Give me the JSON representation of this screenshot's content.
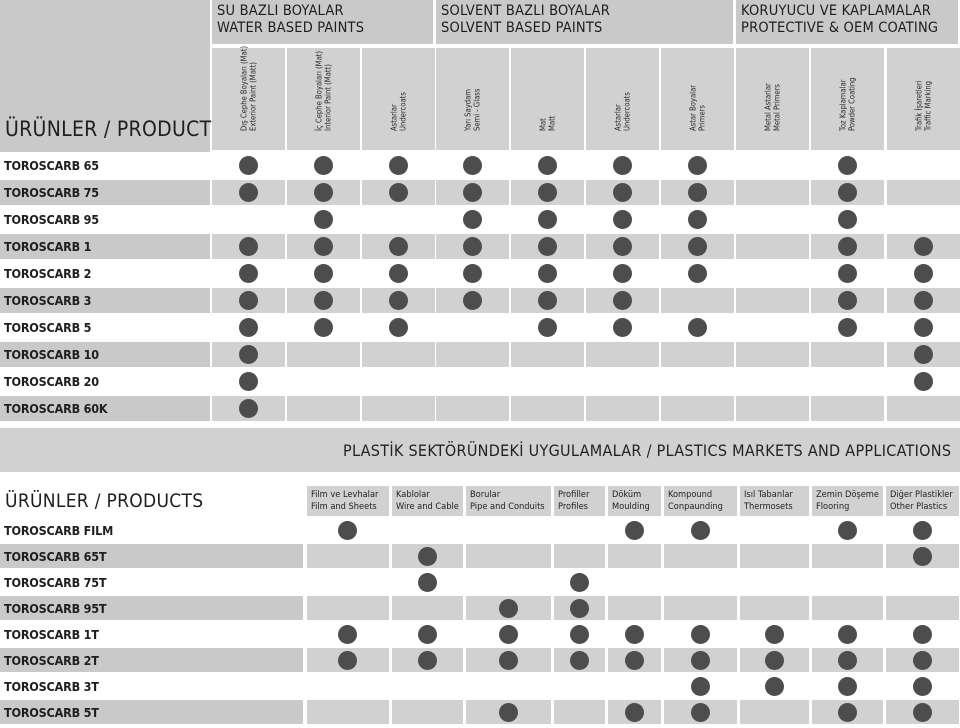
{
  "top": {
    "products_header": "ÜRÜNLER / PRODUCTS",
    "groups": [
      {
        "line1": "SU BAZLI BOYALAR",
        "line2": "WATER BASED PAINTS"
      },
      {
        "line1": "SOLVENT BAZLI BOYALAR",
        "line2": "SOLVENT BASED PAINTS"
      },
      {
        "line1": "KORUYUCU VE KAPLAMALAR",
        "line2": "PROTECTIVE & OEM COATING"
      }
    ],
    "columns": [
      {
        "tr": "Dış Cephe Boyaları (Mat)",
        "en": "Exterior Paint (Matt)"
      },
      {
        "tr": "İç Cephe Boyaları (Mat)",
        "en": "Interior Paint (Matt)"
      },
      {
        "tr": "Astarlar",
        "en": "Undercoats"
      },
      {
        "tr": "Yarı Saydam",
        "en": "Semi - Glass"
      },
      {
        "tr": "Mat",
        "en": "Matt"
      },
      {
        "tr": "Astarlar",
        "en": "Undercoats"
      },
      {
        "tr": "Astar Boyalar",
        "en": "Primers"
      },
      {
        "tr": "Metal Astarlar",
        "en": "Metal Primers"
      },
      {
        "tr": "Toz Kaplamalar",
        "en": "Powder Coating"
      },
      {
        "tr": "Trafik İşaretleri",
        "en": "Traffic Marking"
      }
    ],
    "rows": [
      {
        "name": "TOROSCARB 65",
        "marks": [
          1,
          1,
          1,
          1,
          1,
          1,
          1,
          0,
          1,
          0
        ]
      },
      {
        "name": "TOROSCARB 75",
        "marks": [
          1,
          1,
          1,
          1,
          1,
          1,
          1,
          0,
          1,
          0
        ]
      },
      {
        "name": "TOROSCARB 95",
        "marks": [
          0,
          1,
          0,
          1,
          1,
          1,
          1,
          0,
          1,
          0
        ]
      },
      {
        "name": "TOROSCARB 1",
        "marks": [
          1,
          1,
          1,
          1,
          1,
          1,
          1,
          0,
          1,
          1
        ]
      },
      {
        "name": "TOROSCARB 2",
        "marks": [
          1,
          1,
          1,
          1,
          1,
          1,
          1,
          0,
          1,
          1
        ]
      },
      {
        "name": "TOROSCARB 3",
        "marks": [
          1,
          1,
          1,
          1,
          1,
          1,
          0,
          0,
          1,
          1
        ]
      },
      {
        "name": "TOROSCARB 5",
        "marks": [
          1,
          1,
          1,
          0,
          1,
          1,
          1,
          0,
          1,
          1
        ]
      },
      {
        "name": "TOROSCARB 10",
        "marks": [
          1,
          0,
          0,
          0,
          0,
          0,
          0,
          0,
          0,
          1
        ]
      },
      {
        "name": "TOROSCARB 20",
        "marks": [
          1,
          0,
          0,
          0,
          0,
          0,
          0,
          0,
          0,
          1
        ]
      },
      {
        "name": "TOROSCARB 60K",
        "marks": [
          1,
          0,
          0,
          0,
          0,
          0,
          0,
          0,
          0,
          0
        ]
      }
    ]
  },
  "banner": "PLASTİK SEKTÖRÜNDEKİ UYGULAMALAR / PLASTICS MARKETS AND APPLICATIONS",
  "bottom": {
    "products_header": "ÜRÜNLER / PRODUCTS",
    "columns": [
      {
        "tr": "Film ve Levhalar",
        "en": "Film and Sheets"
      },
      {
        "tr": "Kablolar",
        "en": "Wire and Cable"
      },
      {
        "tr": "Borular",
        "en": "Pipe and Conduits"
      },
      {
        "tr": "Profiller",
        "en": "Profiles"
      },
      {
        "tr": "Döküm",
        "en": "Moulding"
      },
      {
        "tr": "Kompound",
        "en": "Conpaunding"
      },
      {
        "tr": "Isıl Tabanlar",
        "en": "Thermosets"
      },
      {
        "tr": "Zemin Döşeme",
        "en": "Flooring"
      },
      {
        "tr": "Diğer Plastikler",
        "en": "Other Plastics"
      }
    ],
    "rows": [
      {
        "name": "TOROSCARB FILM",
        "marks": [
          1,
          0,
          0,
          0,
          1,
          1,
          0,
          1,
          1
        ]
      },
      {
        "name": "TOROSCARB 65T",
        "marks": [
          0,
          1,
          0,
          0,
          0,
          0,
          0,
          0,
          1
        ]
      },
      {
        "name": "TOROSCARB 75T",
        "marks": [
          0,
          1,
          0,
          1,
          0,
          0,
          0,
          0,
          0
        ]
      },
      {
        "name": "TOROSCARB 95T",
        "marks": [
          0,
          0,
          1,
          1,
          0,
          0,
          0,
          0,
          0
        ]
      },
      {
        "name": "TOROSCARB 1T",
        "marks": [
          1,
          1,
          1,
          1,
          1,
          1,
          1,
          1,
          1
        ]
      },
      {
        "name": "TOROSCARB 2T",
        "marks": [
          1,
          1,
          1,
          1,
          1,
          1,
          1,
          1,
          1
        ]
      },
      {
        "name": "TOROSCARB 3T",
        "marks": [
          0,
          0,
          0,
          0,
          0,
          1,
          1,
          1,
          1
        ]
      },
      {
        "name": "TOROSCARB 5T",
        "marks": [
          0,
          0,
          1,
          0,
          1,
          1,
          0,
          1,
          1
        ]
      }
    ]
  }
}
